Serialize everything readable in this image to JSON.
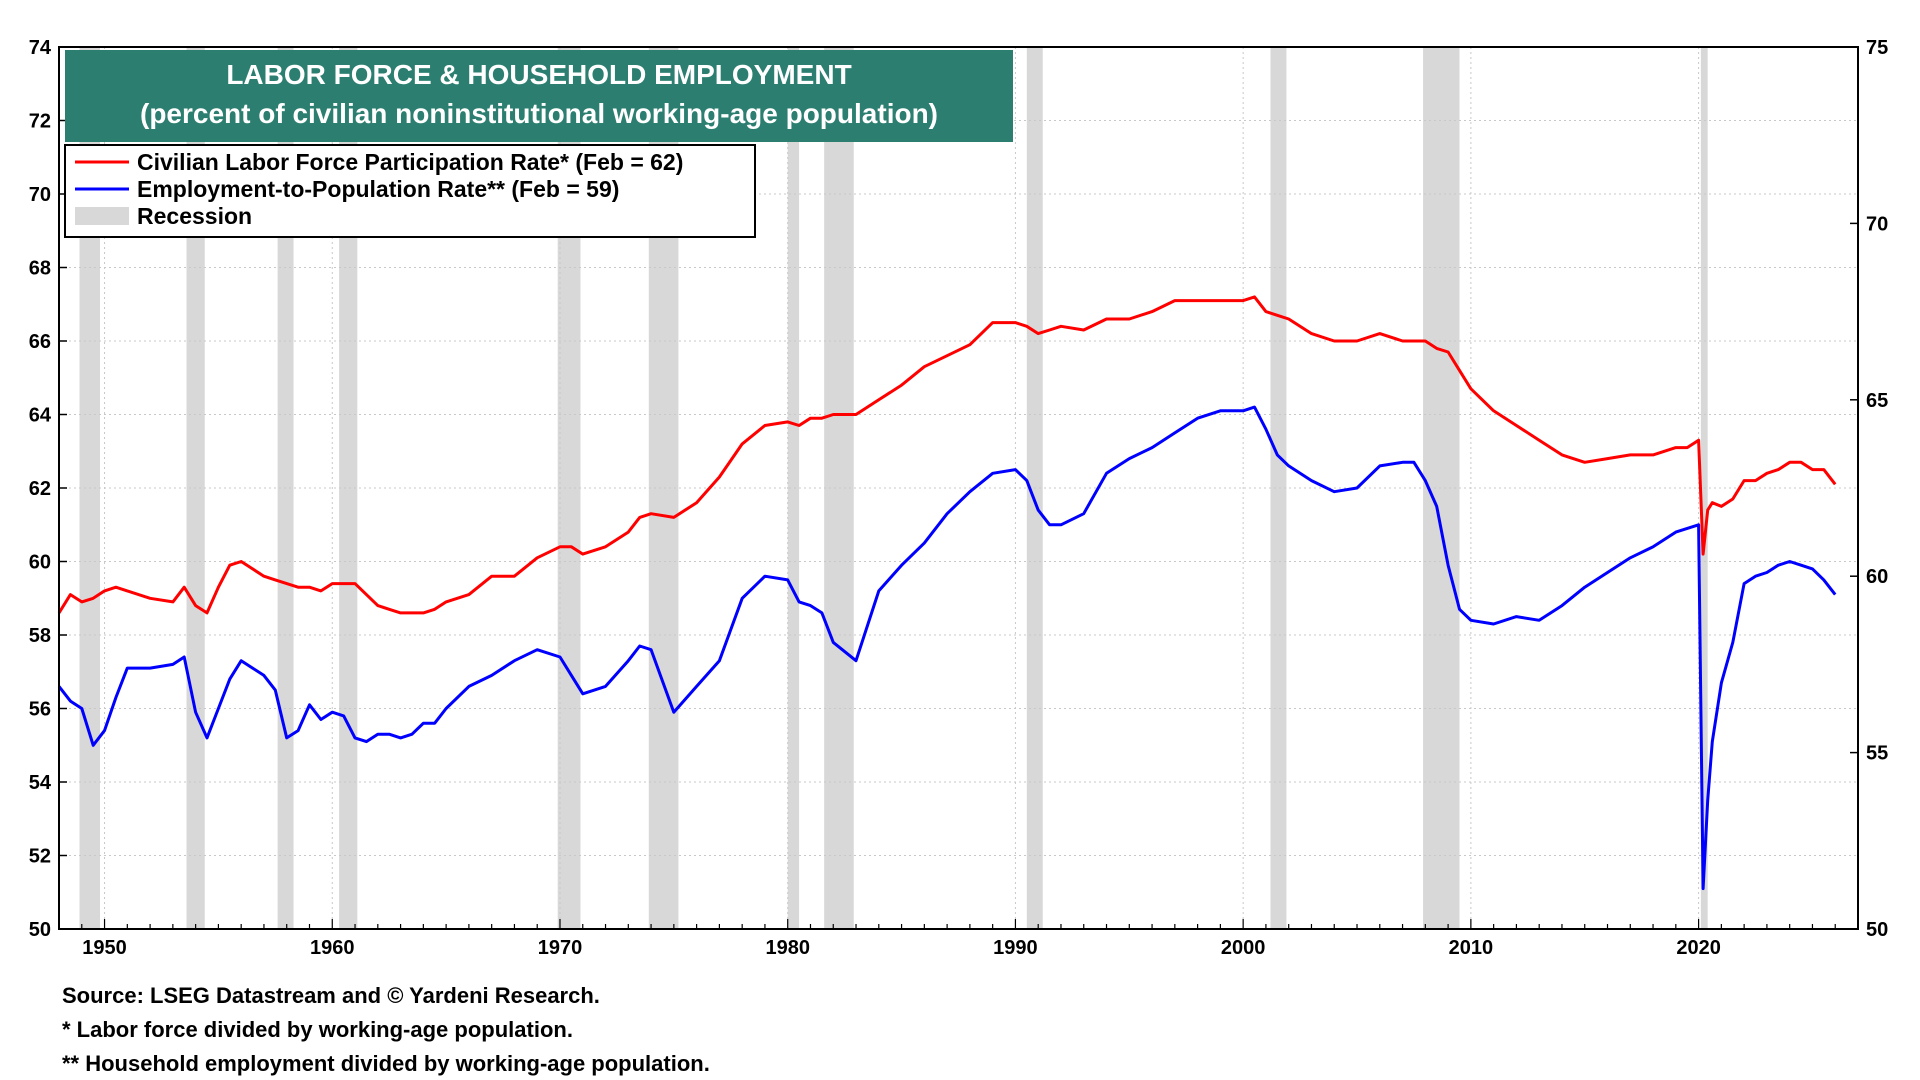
{
  "chart_data": {
    "type": "line",
    "title": "LABOR FORCE & HOUSEHOLD EMPLOYMENT",
    "subtitle": "(percent of civilian noninstitutional working-age population)",
    "x_range": [
      1948,
      2027
    ],
    "x_ticks": [
      "1950",
      "1960",
      "1970",
      "1980",
      "1990",
      "2000",
      "2010",
      "2020"
    ],
    "y_left": {
      "range": [
        50,
        74
      ],
      "ticks": [
        "50",
        "52",
        "54",
        "56",
        "58",
        "60",
        "62",
        "64",
        "66",
        "68",
        "70",
        "72",
        "74"
      ]
    },
    "y_right": {
      "range": [
        50,
        75
      ],
      "ticks": [
        "50",
        "55",
        "60",
        "65",
        "70",
        "75"
      ]
    },
    "grid": true,
    "legend_position": "top-left",
    "legend": [
      {
        "label": "Civilian Labor Force Participation Rate* (Feb  = 62)",
        "color": "#ff0000",
        "kind": "line"
      },
      {
        "label": "Employment-to-Population Rate** (Feb  = 59)",
        "color": "#0000ff",
        "kind": "line"
      },
      {
        "label": "Recession",
        "color": "#d8d8d8",
        "kind": "box"
      }
    ],
    "recessions": [
      [
        1948.9,
        1949.8
      ],
      [
        1953.6,
        1954.4
      ],
      [
        1957.6,
        1958.3
      ],
      [
        1960.3,
        1961.1
      ],
      [
        1969.9,
        1970.9
      ],
      [
        1973.9,
        1975.2
      ],
      [
        1980.0,
        1980.5
      ],
      [
        1981.6,
        1982.9
      ],
      [
        1990.5,
        1991.2
      ],
      [
        2001.2,
        2001.9
      ],
      [
        2007.9,
        2009.5
      ],
      [
        2020.1,
        2020.4
      ]
    ],
    "series": [
      {
        "name": "Civilian Labor Force Participation Rate*",
        "axis": "left",
        "color": "#ff0000",
        "x": [
          1948.0,
          1948.5,
          1949.0,
          1949.5,
          1950.0,
          1950.5,
          1951.0,
          1952.0,
          1953.0,
          1953.5,
          1954.0,
          1954.5,
          1955.0,
          1955.5,
          1956.0,
          1956.5,
          1957.0,
          1957.5,
          1958.0,
          1958.5,
          1959.0,
          1959.5,
          1960.0,
          1960.5,
          1961.0,
          1961.5,
          1962.0,
          1962.5,
          1963.0,
          1963.5,
          1964.0,
          1964.5,
          1965.0,
          1966.0,
          1967.0,
          1968.0,
          1969.0,
          1970.0,
          1970.5,
          1971.0,
          1972.0,
          1973.0,
          1973.5,
          1974.0,
          1975.0,
          1976.0,
          1977.0,
          1978.0,
          1979.0,
          1980.0,
          1980.5,
          1981.0,
          1981.5,
          1982.0,
          1983.0,
          1984.0,
          1985.0,
          1986.0,
          1987.0,
          1988.0,
          1989.0,
          1990.0,
          1990.5,
          1991.0,
          1991.5,
          1992.0,
          1993.0,
          1994.0,
          1995.0,
          1996.0,
          1997.0,
          1998.0,
          1999.0,
          2000.0,
          2000.5,
          2001.0,
          2001.5,
          2002.0,
          2003.0,
          2004.0,
          2005.0,
          2006.0,
          2007.0,
          2007.5,
          2008.0,
          2008.5,
          2009.0,
          2009.5,
          2010.0,
          2011.0,
          2012.0,
          2013.0,
          2014.0,
          2015.0,
          2016.0,
          2017.0,
          2018.0,
          2019.0,
          2019.5,
          2020.0,
          2020.2,
          2020.4,
          2020.6,
          2021.0,
          2021.5,
          2022.0,
          2022.5,
          2023.0,
          2023.5,
          2024.0,
          2024.5,
          2025.0,
          2025.5,
          2026.0
        ],
        "values": [
          58.6,
          59.1,
          58.9,
          59.0,
          59.2,
          59.3,
          59.2,
          59.0,
          58.9,
          59.3,
          58.8,
          58.6,
          59.3,
          59.9,
          60.0,
          59.8,
          59.6,
          59.5,
          59.4,
          59.3,
          59.3,
          59.2,
          59.4,
          59.4,
          59.4,
          59.1,
          58.8,
          58.7,
          58.6,
          58.6,
          58.6,
          58.7,
          58.9,
          59.1,
          59.6,
          59.6,
          60.1,
          60.4,
          60.4,
          60.2,
          60.4,
          60.8,
          61.2,
          61.3,
          61.2,
          61.6,
          62.3,
          63.2,
          63.7,
          63.8,
          63.7,
          63.9,
          63.9,
          64.0,
          64.0,
          64.4,
          64.8,
          65.3,
          65.6,
          65.9,
          66.5,
          66.5,
          66.4,
          66.2,
          66.3,
          66.4,
          66.3,
          66.6,
          66.6,
          66.8,
          67.1,
          67.1,
          67.1,
          67.1,
          67.2,
          66.8,
          66.7,
          66.6,
          66.2,
          66.0,
          66.0,
          66.2,
          66.0,
          66.0,
          66.0,
          65.8,
          65.7,
          65.2,
          64.7,
          64.1,
          63.7,
          63.3,
          62.9,
          62.7,
          62.8,
          62.9,
          62.9,
          63.1,
          63.1,
          63.3,
          60.2,
          61.4,
          61.6,
          61.5,
          61.7,
          62.2,
          62.2,
          62.4,
          62.5,
          62.7,
          62.7,
          62.5,
          62.5,
          62.1
        ]
      },
      {
        "name": "Employment-to-Population Rate**",
        "axis": "left",
        "color": "#0000ff",
        "x": [
          1948.0,
          1948.5,
          1949.0,
          1949.5,
          1950.0,
          1950.5,
          1951.0,
          1952.0,
          1953.0,
          1953.5,
          1954.0,
          1954.5,
          1955.0,
          1955.5,
          1956.0,
          1956.5,
          1957.0,
          1957.5,
          1958.0,
          1958.5,
          1959.0,
          1959.5,
          1960.0,
          1960.5,
          1961.0,
          1961.5,
          1962.0,
          1962.5,
          1963.0,
          1963.5,
          1964.0,
          1964.5,
          1965.0,
          1966.0,
          1967.0,
          1968.0,
          1969.0,
          1970.0,
          1970.5,
          1971.0,
          1972.0,
          1973.0,
          1973.5,
          1974.0,
          1975.0,
          1976.0,
          1977.0,
          1978.0,
          1979.0,
          1980.0,
          1980.5,
          1981.0,
          1981.5,
          1982.0,
          1983.0,
          1984.0,
          1985.0,
          1986.0,
          1987.0,
          1988.0,
          1989.0,
          1990.0,
          1990.5,
          1991.0,
          1991.5,
          1992.0,
          1993.0,
          1994.0,
          1995.0,
          1996.0,
          1997.0,
          1998.0,
          1999.0,
          2000.0,
          2000.5,
          2001.0,
          2001.5,
          2002.0,
          2003.0,
          2004.0,
          2005.0,
          2006.0,
          2007.0,
          2007.5,
          2008.0,
          2008.5,
          2009.0,
          2009.5,
          2010.0,
          2011.0,
          2012.0,
          2013.0,
          2014.0,
          2015.0,
          2016.0,
          2017.0,
          2018.0,
          2019.0,
          2019.5,
          2020.0,
          2020.2,
          2020.4,
          2020.6,
          2021.0,
          2021.5,
          2022.0,
          2022.5,
          2023.0,
          2023.5,
          2024.0,
          2024.5,
          2025.0,
          2025.5,
          2026.0
        ],
        "values": [
          56.6,
          56.2,
          56.0,
          55.0,
          55.4,
          56.3,
          57.1,
          57.1,
          57.2,
          57.4,
          55.9,
          55.2,
          56.0,
          56.8,
          57.3,
          57.1,
          56.9,
          56.5,
          55.2,
          55.4,
          56.1,
          55.7,
          55.9,
          55.8,
          55.2,
          55.1,
          55.3,
          55.3,
          55.2,
          55.3,
          55.6,
          55.6,
          56.0,
          56.6,
          56.9,
          57.3,
          57.6,
          57.4,
          56.9,
          56.4,
          56.6,
          57.3,
          57.7,
          57.6,
          55.9,
          56.6,
          57.3,
          59.0,
          59.6,
          59.5,
          58.9,
          58.8,
          58.6,
          57.8,
          57.3,
          59.2,
          59.9,
          60.5,
          61.3,
          61.9,
          62.4,
          62.5,
          62.2,
          61.4,
          61.0,
          61.0,
          61.3,
          62.4,
          62.8,
          63.1,
          63.5,
          63.9,
          64.1,
          64.1,
          64.2,
          63.6,
          62.9,
          62.6,
          62.2,
          61.9,
          62.0,
          62.6,
          62.7,
          62.7,
          62.2,
          61.5,
          59.9,
          58.7,
          58.4,
          58.3,
          58.5,
          58.4,
          58.8,
          59.3,
          59.7,
          60.1,
          60.4,
          60.8,
          60.9,
          61.0,
          51.1,
          53.5,
          55.1,
          56.7,
          57.8,
          59.4,
          59.6,
          59.7,
          59.9,
          60.0,
          59.9,
          59.8,
          59.5,
          59.1
        ]
      }
    ]
  },
  "footnotes": {
    "source": "Source: LSEG Datastream and © Yardeni Research.",
    "note1": "* Labor force divided by working-age population.",
    "note2": "** Household employment divided by working-age population."
  }
}
